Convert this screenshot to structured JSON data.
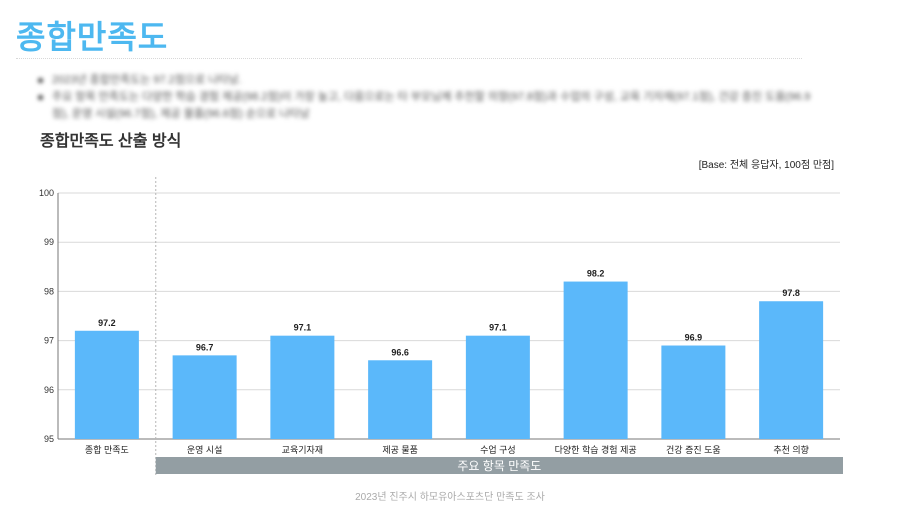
{
  "page": {
    "title": "종합만족도",
    "bullets": [
      "2023년 종합만족도는 97.2점으로 나타남.",
      "주요 항목 만족도는 다양한 학습 경험 제공(98.2점)이 가장 높고, 다음으로는 타 부모님께 추천할 의향(97.8점)과 수업의 구성, 교육 기자재(97.1점), 건강 증진 도움(96.9점), 운영 시설(96.7점), 제공 물품(96.6점) 순으로 나타남"
    ],
    "subtitle": "종합만족도 산출 방식",
    "base_note": "[Base: 전체 응답자, 100점 만점]",
    "footer": "2023년 진주시 하모유아스포츠단 만족도 조사"
  },
  "colors": {
    "title": "#4db8f0",
    "bar": "#5bb8fa",
    "group_band": "#939ea3"
  },
  "chart_data": {
    "type": "bar",
    "categories": [
      "종합 만족도",
      "운영 시설",
      "교육기자재",
      "제공 물품",
      "수업 구성",
      "다양한 학습 경험 제공",
      "건강 증진 도움",
      "추천 의향"
    ],
    "values": [
      97.2,
      96.7,
      97.1,
      96.6,
      97.1,
      98.2,
      96.9,
      97.8
    ],
    "data_labels": [
      "97.2",
      "96.7",
      "97.1",
      "96.6",
      "97.1",
      "98.2",
      "96.9",
      "97.8"
    ],
    "ylim": [
      95,
      100
    ],
    "yticks": [
      95,
      96,
      97,
      98,
      99,
      100
    ],
    "grid": true,
    "group_label": "주요 항목 만족도",
    "group_start_index": 1
  }
}
